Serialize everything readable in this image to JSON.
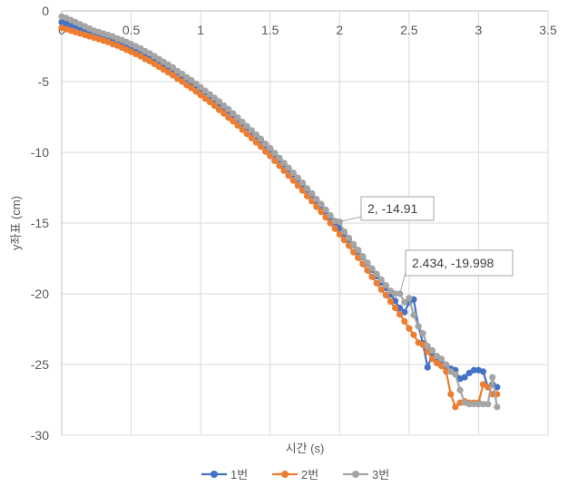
{
  "chart_data": {
    "type": "scatter",
    "xlabel": "시간 (s)",
    "ylabel": "y좌표 (cm)",
    "xlim": [
      0,
      3.5
    ],
    "ylim": [
      -30,
      0
    ],
    "x_ticks": [
      "0",
      "0.5",
      "1",
      "1.5",
      "2",
      "2.5",
      "3",
      "3.5"
    ],
    "y_ticks": [
      "0",
      "-5",
      "-10",
      "-15",
      "-20",
      "-25",
      "-30"
    ],
    "grid": true,
    "legend_position": "bottom",
    "series": [
      {
        "name": "1번",
        "color": "#4472C4",
        "points": [
          [
            0.0,
            -0.8
          ],
          [
            0.033,
            -0.9
          ],
          [
            0.067,
            -1.0
          ],
          [
            0.1,
            -1.1
          ],
          [
            0.133,
            -1.2
          ],
          [
            0.167,
            -1.3
          ],
          [
            0.2,
            -1.4
          ],
          [
            0.233,
            -1.5
          ],
          [
            0.267,
            -1.6
          ],
          [
            0.3,
            -1.7
          ],
          [
            0.333,
            -1.8
          ],
          [
            0.367,
            -1.95
          ],
          [
            0.4,
            -2.1
          ],
          [
            0.433,
            -2.2
          ],
          [
            0.467,
            -2.35
          ],
          [
            0.5,
            -2.5
          ],
          [
            0.533,
            -2.65
          ],
          [
            0.567,
            -2.8
          ],
          [
            0.6,
            -3.0
          ],
          [
            0.633,
            -3.15
          ],
          [
            0.667,
            -3.35
          ],
          [
            0.7,
            -3.55
          ],
          [
            0.733,
            -3.75
          ],
          [
            0.767,
            -3.95
          ],
          [
            0.8,
            -4.15
          ],
          [
            0.833,
            -4.35
          ],
          [
            0.867,
            -4.6
          ],
          [
            0.9,
            -4.8
          ],
          [
            0.933,
            -5.05
          ],
          [
            0.967,
            -5.25
          ],
          [
            1.0,
            -5.5
          ],
          [
            1.033,
            -5.75
          ],
          [
            1.067,
            -6.0
          ],
          [
            1.1,
            -6.25
          ],
          [
            1.133,
            -6.55
          ],
          [
            1.167,
            -6.8
          ],
          [
            1.2,
            -7.1
          ],
          [
            1.233,
            -7.35
          ],
          [
            1.267,
            -7.65
          ],
          [
            1.3,
            -7.95
          ],
          [
            1.333,
            -8.25
          ],
          [
            1.367,
            -8.55
          ],
          [
            1.4,
            -8.85
          ],
          [
            1.433,
            -9.15
          ],
          [
            1.467,
            -9.5
          ],
          [
            1.5,
            -9.8
          ],
          [
            1.533,
            -10.15
          ],
          [
            1.567,
            -10.5
          ],
          [
            1.6,
            -10.85
          ],
          [
            1.633,
            -11.2
          ],
          [
            1.667,
            -11.55
          ],
          [
            1.7,
            -11.9
          ],
          [
            1.733,
            -12.25
          ],
          [
            1.767,
            -12.65
          ],
          [
            1.8,
            -13.0
          ],
          [
            1.833,
            -13.4
          ],
          [
            1.867,
            -13.75
          ],
          [
            1.9,
            -14.15
          ],
          [
            1.933,
            -14.55
          ],
          [
            1.967,
            -14.95
          ],
          [
            2.0,
            -15.35
          ],
          [
            2.033,
            -15.75
          ],
          [
            2.067,
            -16.15
          ],
          [
            2.1,
            -16.55
          ],
          [
            2.133,
            -17.0
          ],
          [
            2.167,
            -17.4
          ],
          [
            2.2,
            -17.85
          ],
          [
            2.233,
            -18.3
          ],
          [
            2.267,
            -18.75
          ],
          [
            2.3,
            -19.2
          ],
          [
            2.333,
            -19.6
          ],
          [
            2.367,
            -20.05
          ],
          [
            2.4,
            -20.5
          ],
          [
            2.433,
            -21.0
          ],
          [
            2.467,
            -21.3
          ],
          [
            2.5,
            -20.6
          ],
          [
            2.533,
            -20.4
          ],
          [
            2.567,
            -22.3
          ],
          [
            2.6,
            -23.5
          ],
          [
            2.633,
            -25.2
          ],
          [
            2.667,
            -24.3
          ],
          [
            2.7,
            -24.6
          ],
          [
            2.733,
            -24.8
          ],
          [
            2.767,
            -25.1
          ],
          [
            2.8,
            -25.3
          ],
          [
            2.833,
            -25.4
          ],
          [
            2.867,
            -26.0
          ],
          [
            2.9,
            -25.9
          ],
          [
            2.933,
            -25.6
          ],
          [
            2.967,
            -25.4
          ],
          [
            3.0,
            -25.4
          ],
          [
            3.033,
            -25.5
          ],
          [
            3.067,
            -26.6
          ],
          [
            3.1,
            -26.4
          ],
          [
            3.133,
            -26.6
          ]
        ]
      },
      {
        "name": "2번",
        "color": "#ED7D31",
        "points": [
          [
            0.0,
            -1.2
          ],
          [
            0.033,
            -1.3
          ],
          [
            0.067,
            -1.4
          ],
          [
            0.1,
            -1.5
          ],
          [
            0.133,
            -1.6
          ],
          [
            0.167,
            -1.7
          ],
          [
            0.2,
            -1.8
          ],
          [
            0.233,
            -1.9
          ],
          [
            0.267,
            -2.0
          ],
          [
            0.3,
            -2.1
          ],
          [
            0.333,
            -2.2
          ],
          [
            0.367,
            -2.35
          ],
          [
            0.4,
            -2.45
          ],
          [
            0.433,
            -2.6
          ],
          [
            0.467,
            -2.75
          ],
          [
            0.5,
            -2.9
          ],
          [
            0.533,
            -3.05
          ],
          [
            0.567,
            -3.2
          ],
          [
            0.6,
            -3.4
          ],
          [
            0.633,
            -3.55
          ],
          [
            0.667,
            -3.75
          ],
          [
            0.7,
            -3.95
          ],
          [
            0.733,
            -4.15
          ],
          [
            0.767,
            -4.35
          ],
          [
            0.8,
            -4.55
          ],
          [
            0.833,
            -4.8
          ],
          [
            0.867,
            -5.0
          ],
          [
            0.9,
            -5.25
          ],
          [
            0.933,
            -5.45
          ],
          [
            0.967,
            -5.7
          ],
          [
            1.0,
            -5.95
          ],
          [
            1.033,
            -6.2
          ],
          [
            1.067,
            -6.45
          ],
          [
            1.1,
            -6.7
          ],
          [
            1.133,
            -7.0
          ],
          [
            1.167,
            -7.25
          ],
          [
            1.2,
            -7.55
          ],
          [
            1.233,
            -7.8
          ],
          [
            1.267,
            -8.1
          ],
          [
            1.3,
            -8.4
          ],
          [
            1.333,
            -8.7
          ],
          [
            1.367,
            -9.0
          ],
          [
            1.4,
            -9.3
          ],
          [
            1.433,
            -9.6
          ],
          [
            1.467,
            -9.95
          ],
          [
            1.5,
            -10.25
          ],
          [
            1.533,
            -10.6
          ],
          [
            1.567,
            -10.95
          ],
          [
            1.6,
            -11.3
          ],
          [
            1.633,
            -11.65
          ],
          [
            1.667,
            -12.0
          ],
          [
            1.7,
            -12.35
          ],
          [
            1.733,
            -12.7
          ],
          [
            1.767,
            -13.1
          ],
          [
            1.8,
            -13.45
          ],
          [
            1.833,
            -13.85
          ],
          [
            1.867,
            -14.2
          ],
          [
            1.9,
            -14.6
          ],
          [
            1.933,
            -15.0
          ],
          [
            1.967,
            -15.4
          ],
          [
            2.0,
            -15.8
          ],
          [
            2.033,
            -16.2
          ],
          [
            2.067,
            -16.6
          ],
          [
            2.1,
            -17.05
          ],
          [
            2.133,
            -17.45
          ],
          [
            2.167,
            -17.9
          ],
          [
            2.2,
            -18.35
          ],
          [
            2.233,
            -18.8
          ],
          [
            2.267,
            -19.25
          ],
          [
            2.3,
            -19.7
          ],
          [
            2.333,
            -20.1
          ],
          [
            2.367,
            -20.55
          ],
          [
            2.4,
            -21.0
          ],
          [
            2.433,
            -21.45
          ],
          [
            2.467,
            -21.95
          ],
          [
            2.5,
            -22.45
          ],
          [
            2.533,
            -22.9
          ],
          [
            2.567,
            -23.45
          ],
          [
            2.6,
            -23.6
          ],
          [
            2.633,
            -24.1
          ],
          [
            2.667,
            -24.6
          ],
          [
            2.7,
            -24.9
          ],
          [
            2.733,
            -25.1
          ],
          [
            2.767,
            -25.5
          ],
          [
            2.8,
            -27.1
          ],
          [
            2.833,
            -28.0
          ],
          [
            2.867,
            -27.7
          ],
          [
            2.9,
            -27.6
          ],
          [
            2.933,
            -27.7
          ],
          [
            2.967,
            -27.7
          ],
          [
            3.0,
            -27.7
          ],
          [
            3.033,
            -26.4
          ],
          [
            3.067,
            -26.6
          ],
          [
            3.1,
            -27.1
          ],
          [
            3.133,
            -27.1
          ]
        ]
      },
      {
        "name": "3번",
        "color": "#A5A5A5",
        "points": [
          [
            0.0,
            -0.4
          ],
          [
            0.033,
            -0.5
          ],
          [
            0.067,
            -0.65
          ],
          [
            0.1,
            -0.8
          ],
          [
            0.133,
            -0.95
          ],
          [
            0.167,
            -1.1
          ],
          [
            0.2,
            -1.25
          ],
          [
            0.233,
            -1.4
          ],
          [
            0.267,
            -1.5
          ],
          [
            0.3,
            -1.6
          ],
          [
            0.333,
            -1.7
          ],
          [
            0.367,
            -1.8
          ],
          [
            0.4,
            -1.95
          ],
          [
            0.433,
            -2.05
          ],
          [
            0.467,
            -2.2
          ],
          [
            0.5,
            -2.35
          ],
          [
            0.533,
            -2.5
          ],
          [
            0.567,
            -2.65
          ],
          [
            0.6,
            -2.85
          ],
          [
            0.633,
            -3.0
          ],
          [
            0.667,
            -3.2
          ],
          [
            0.7,
            -3.4
          ],
          [
            0.733,
            -3.6
          ],
          [
            0.767,
            -3.8
          ],
          [
            0.8,
            -4.0
          ],
          [
            0.833,
            -4.25
          ],
          [
            0.867,
            -4.45
          ],
          [
            0.9,
            -4.7
          ],
          [
            0.933,
            -4.9
          ],
          [
            0.967,
            -5.15
          ],
          [
            1.0,
            -5.4
          ],
          [
            1.033,
            -5.65
          ],
          [
            1.067,
            -5.9
          ],
          [
            1.1,
            -6.15
          ],
          [
            1.133,
            -6.4
          ],
          [
            1.167,
            -6.7
          ],
          [
            1.2,
            -6.95
          ],
          [
            1.233,
            -7.25
          ],
          [
            1.267,
            -7.55
          ],
          [
            1.3,
            -7.85
          ],
          [
            1.333,
            -8.15
          ],
          [
            1.367,
            -8.45
          ],
          [
            1.4,
            -8.75
          ],
          [
            1.433,
            -9.05
          ],
          [
            1.467,
            -9.4
          ],
          [
            1.5,
            -9.7
          ],
          [
            1.533,
            -10.05
          ],
          [
            1.567,
            -10.4
          ],
          [
            1.6,
            -10.75
          ],
          [
            1.633,
            -11.1
          ],
          [
            1.667,
            -11.45
          ],
          [
            1.7,
            -11.8
          ],
          [
            1.733,
            -12.15
          ],
          [
            1.767,
            -12.55
          ],
          [
            1.8,
            -12.9
          ],
          [
            1.833,
            -13.3
          ],
          [
            1.867,
            -13.65
          ],
          [
            1.9,
            -14.05
          ],
          [
            1.933,
            -14.45
          ],
          [
            1.967,
            -14.85
          ],
          [
            2.0,
            -14.91
          ],
          [
            2.033,
            -15.6
          ],
          [
            2.067,
            -16.05
          ],
          [
            2.1,
            -16.5
          ],
          [
            2.133,
            -16.9
          ],
          [
            2.167,
            -17.35
          ],
          [
            2.2,
            -17.8
          ],
          [
            2.233,
            -18.2
          ],
          [
            2.267,
            -18.6
          ],
          [
            2.3,
            -19.0
          ],
          [
            2.333,
            -19.4
          ],
          [
            2.367,
            -19.8
          ],
          [
            2.4,
            -19.998
          ],
          [
            2.434,
            -19.998
          ],
          [
            2.467,
            -20.6
          ],
          [
            2.5,
            -20.3
          ],
          [
            2.533,
            -21.5
          ],
          [
            2.567,
            -22.3
          ],
          [
            2.6,
            -22.8
          ],
          [
            2.633,
            -23.7
          ],
          [
            2.667,
            -24.0
          ],
          [
            2.7,
            -24.4
          ],
          [
            2.733,
            -24.6
          ],
          [
            2.767,
            -25.0
          ],
          [
            2.8,
            -25.5
          ],
          [
            2.833,
            -25.7
          ],
          [
            2.867,
            -26.8
          ],
          [
            2.9,
            -27.7
          ],
          [
            2.933,
            -27.8
          ],
          [
            2.967,
            -27.8
          ],
          [
            3.0,
            -27.8
          ],
          [
            3.033,
            -27.8
          ],
          [
            3.067,
            -27.8
          ],
          [
            3.1,
            -25.9
          ],
          [
            3.133,
            -28.0
          ]
        ]
      }
    ],
    "annotations": [
      {
        "text": "2, -14.91",
        "x": 2.0,
        "y": -14.91
      },
      {
        "text": "2.434, -19.998",
        "x": 2.434,
        "y": -19.998
      }
    ]
  }
}
